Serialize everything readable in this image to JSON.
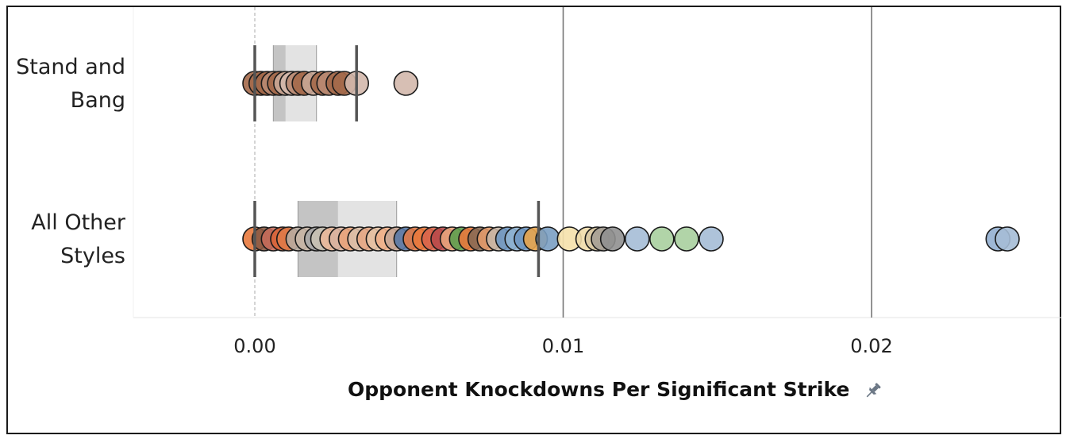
{
  "chart_data": {
    "type": "scatter",
    "subtype": "box-and-whisker dot strip",
    "xlabel": "Opponent Knockdowns Per Significant Strike",
    "xlabel_icon": "pin-icon",
    "x_ticks": [
      0.0,
      0.01,
      0.02
    ],
    "x_tick_labels": [
      "0.00",
      "0.01",
      "0.02"
    ],
    "xlim": [
      -0.004,
      0.0262
    ],
    "grid": "vertical lines at 0.01 and 0.02; dashed zero line",
    "categories": [
      "Stand and Bang",
      "All Other Styles"
    ],
    "category_label_lines": [
      [
        "Stand and",
        "Bang"
      ],
      [
        "All Other",
        "Styles"
      ]
    ],
    "colors": {
      "box_dark": "#c4c4c4",
      "box_light": "#e3e3e3",
      "whisker": "#555555",
      "gridline": "#777777",
      "stand_and_bang_dot": "#a4694a",
      "stand_and_bang_outlier": "#d3b8ac"
    },
    "boxes": [
      {
        "category": "Stand and Bang",
        "whisker_low": 0.0,
        "q1": 0.0006,
        "median": 0.001,
        "q3": 0.002,
        "whisker_high": 0.0033
      },
      {
        "category": "All Other Styles",
        "whisker_low": 0.0,
        "q1": 0.0014,
        "median": 0.0027,
        "q3": 0.0046,
        "whisker_high": 0.0092
      }
    ],
    "series": [
      {
        "category": "Stand and Bang",
        "points": [
          {
            "x": 0.0,
            "color": "#a4694a"
          },
          {
            "x": 0.0002,
            "color": "#a4694a"
          },
          {
            "x": 0.0004,
            "color": "#a4694a"
          },
          {
            "x": 0.0006,
            "color": "#b98a72"
          },
          {
            "x": 0.0008,
            "color": "#a4694a"
          },
          {
            "x": 0.001,
            "color": "#c9a796"
          },
          {
            "x": 0.0012,
            "color": "#d3b8ac"
          },
          {
            "x": 0.0014,
            "color": "#b98a72"
          },
          {
            "x": 0.0016,
            "color": "#a4694a"
          },
          {
            "x": 0.0019,
            "color": "#c9a796"
          },
          {
            "x": 0.0022,
            "color": "#a4694a"
          },
          {
            "x": 0.0024,
            "color": "#b98a72"
          },
          {
            "x": 0.0027,
            "color": "#a4694a"
          },
          {
            "x": 0.0029,
            "color": "#a4694a"
          },
          {
            "x": 0.0033,
            "color": "#d3b8ac"
          },
          {
            "x": 0.0049,
            "color": "#d3b8ac"
          }
        ]
      },
      {
        "category": "All Other Styles",
        "points": [
          {
            "x": 0.0,
            "color": "#e8793d"
          },
          {
            "x": 0.0003,
            "color": "#8a5a44"
          },
          {
            "x": 0.0006,
            "color": "#c56b5a"
          },
          {
            "x": 0.0009,
            "color": "#d9653a"
          },
          {
            "x": 0.0011,
            "color": "#e07a48"
          },
          {
            "x": 0.0014,
            "color": "#b8aba0"
          },
          {
            "x": 0.0017,
            "color": "#c8b6a6"
          },
          {
            "x": 0.002,
            "color": "#a8a8a8"
          },
          {
            "x": 0.0022,
            "color": "#c9c2b4"
          },
          {
            "x": 0.0025,
            "color": "#e9b89a"
          },
          {
            "x": 0.0028,
            "color": "#d9b3a0"
          },
          {
            "x": 0.0031,
            "color": "#e8a47c"
          },
          {
            "x": 0.0034,
            "color": "#dcc0aa"
          },
          {
            "x": 0.0037,
            "color": "#e5a886"
          },
          {
            "x": 0.004,
            "color": "#e6c3a5"
          },
          {
            "x": 0.0043,
            "color": "#f0b08a"
          },
          {
            "x": 0.0046,
            "color": "#c9a796"
          },
          {
            "x": 0.0049,
            "color": "#5a79a6"
          },
          {
            "x": 0.0052,
            "color": "#e07a48"
          },
          {
            "x": 0.0055,
            "color": "#e8793d"
          },
          {
            "x": 0.0058,
            "color": "#d8654b"
          },
          {
            "x": 0.0061,
            "color": "#b94a4a"
          },
          {
            "x": 0.0064,
            "color": "#e8a47c"
          },
          {
            "x": 0.0067,
            "color": "#5e9e4f"
          },
          {
            "x": 0.007,
            "color": "#e8793d"
          },
          {
            "x": 0.0073,
            "color": "#8a6a54"
          },
          {
            "x": 0.0076,
            "color": "#e29a6a"
          },
          {
            "x": 0.0079,
            "color": "#c8b6a6"
          },
          {
            "x": 0.0082,
            "color": "#6f97c2"
          },
          {
            "x": 0.0085,
            "color": "#8fb2d2"
          },
          {
            "x": 0.0088,
            "color": "#6f97c2"
          },
          {
            "x": 0.0091,
            "color": "#e8a44c"
          },
          {
            "x": 0.0095,
            "color": "#7a9ec2"
          },
          {
            "x": 0.0102,
            "color": "#f5e1ab"
          },
          {
            "x": 0.0108,
            "color": "#f0dcaa"
          },
          {
            "x": 0.0111,
            "color": "#d9c9a3"
          },
          {
            "x": 0.0113,
            "color": "#a6a096"
          },
          {
            "x": 0.0116,
            "color": "#909090"
          },
          {
            "x": 0.0124,
            "color": "#a5bcd6"
          },
          {
            "x": 0.0132,
            "color": "#a8cf9e"
          },
          {
            "x": 0.014,
            "color": "#a8cf9e"
          },
          {
            "x": 0.0148,
            "color": "#a5bcd6"
          },
          {
            "x": 0.0241,
            "color": "#93afd0"
          },
          {
            "x": 0.0244,
            "color": "#a5bcd6"
          }
        ]
      }
    ]
  }
}
